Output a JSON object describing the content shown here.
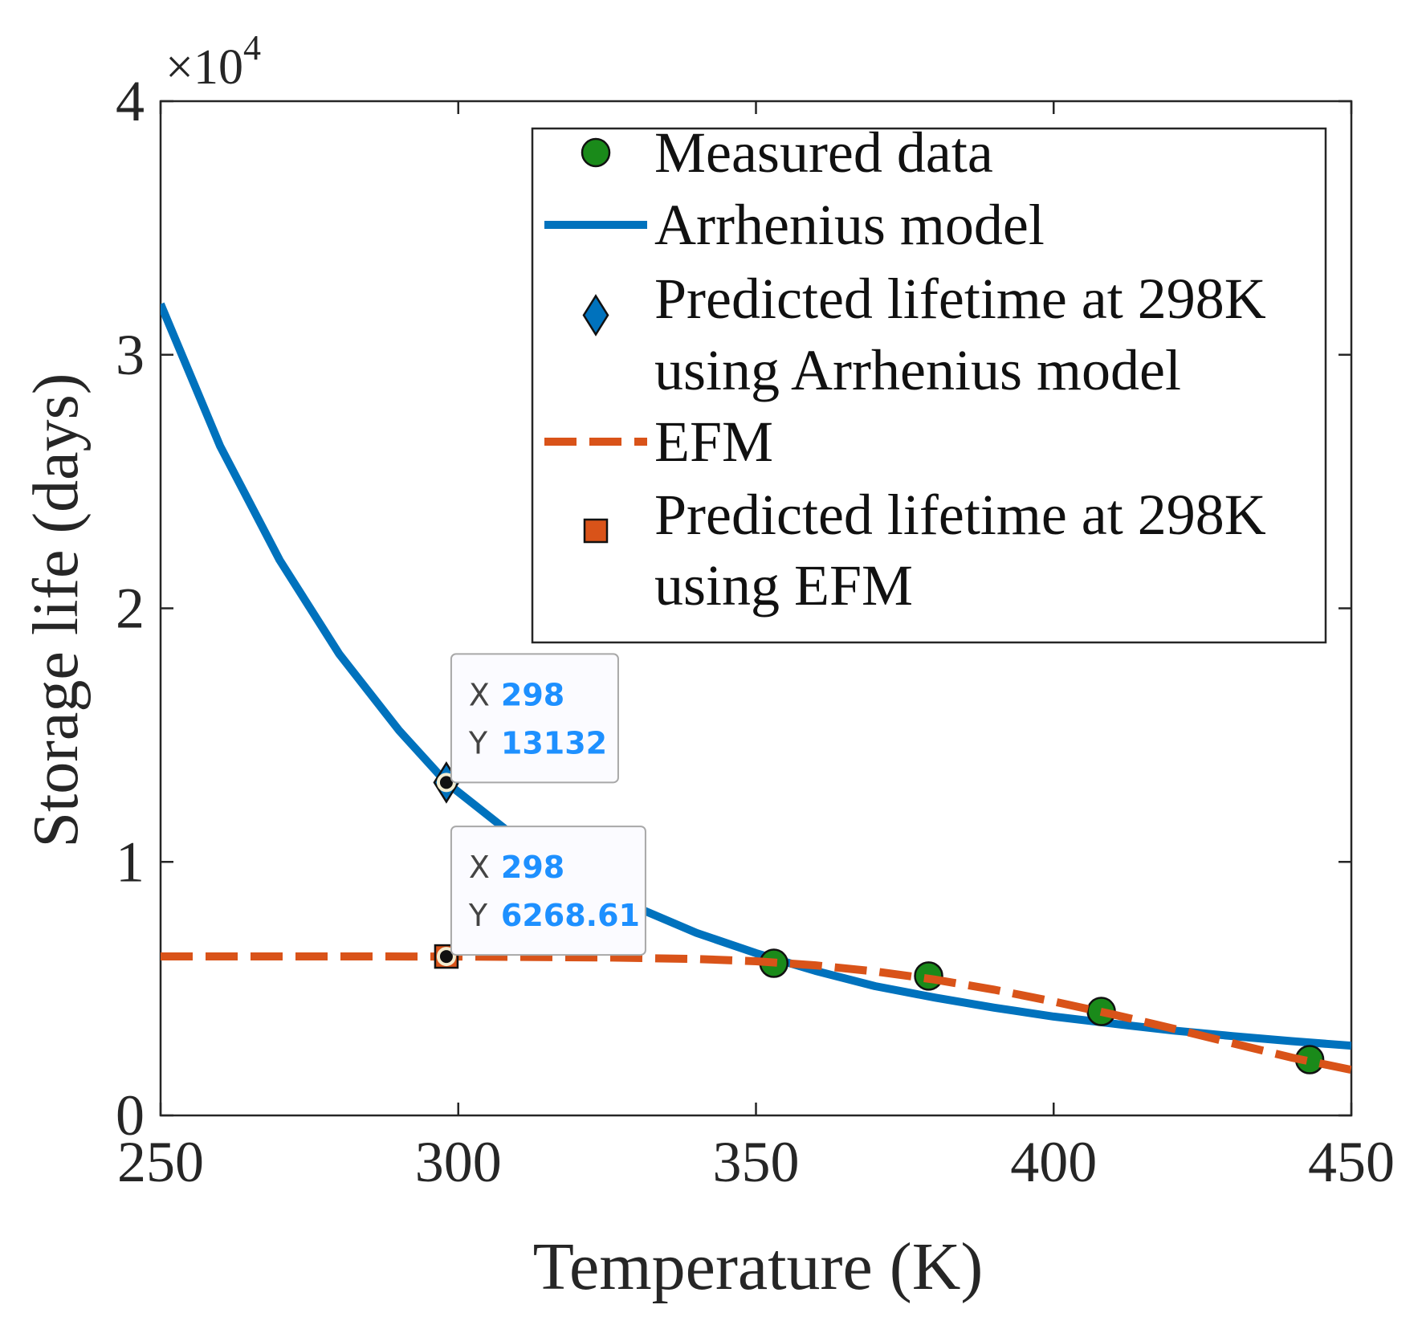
{
  "chart_data": {
    "type": "line",
    "title": "",
    "xlabel": "Temperature (K)",
    "ylabel": "Storage life (days)",
    "xlim": [
      250,
      450
    ],
    "ylim": [
      0,
      40000
    ],
    "x_ticks": [
      250,
      300,
      350,
      400,
      450
    ],
    "x_tick_labels": [
      "250",
      "300",
      "350",
      "400",
      "450"
    ],
    "y_ticks": [
      0,
      10000,
      20000,
      30000,
      40000
    ],
    "y_tick_labels": [
      "0",
      "1",
      "2",
      "3",
      "4"
    ],
    "y_exponent_label": "×10",
    "y_exponent_power": "4",
    "grid": false,
    "legend_position": "top-right",
    "series": [
      {
        "name": "Measured data",
        "kind": "markers",
        "marker": "circle",
        "color": "#1a8a1a",
        "x": [
          353,
          379,
          408,
          443
        ],
        "y": [
          6000,
          5500,
          4100,
          2200
        ]
      },
      {
        "name": "Arrhenius model",
        "kind": "line",
        "style": "solid",
        "color": "#0072BD",
        "x": [
          250,
          260,
          270,
          280,
          290,
          298,
          310,
          320,
          330,
          340,
          350,
          360,
          370,
          380,
          390,
          400,
          410,
          420,
          430,
          440,
          450
        ],
        "y": [
          32000,
          26400,
          21900,
          18200,
          15200,
          13132,
          10900,
          9400,
          8200,
          7200,
          6400,
          5700,
          5100,
          4650,
          4250,
          3900,
          3620,
          3350,
          3130,
          2930,
          2750
        ]
      },
      {
        "name": "Predicted lifetime at 298K using Arrhenius model",
        "legend_lines": [
          "Predicted lifetime at 298K",
          "using Arrhenius model"
        ],
        "kind": "markers",
        "marker": "diamond",
        "color": "#0072BD",
        "x": [
          298
        ],
        "y": [
          13132
        ]
      },
      {
        "name": "EFM",
        "kind": "line",
        "style": "dashed",
        "color": "#D95319",
        "x": [
          250,
          275,
          300,
          325,
          340,
          350,
          360,
          370,
          380,
          390,
          400,
          410,
          420,
          430,
          440,
          450
        ],
        "y": [
          6270,
          6270,
          6268,
          6230,
          6170,
          6080,
          5920,
          5680,
          5360,
          4960,
          4490,
          3980,
          3430,
          2850,
          2280,
          1800
        ]
      },
      {
        "name": "Predicted lifetime at 298K using EFM",
        "legend_lines": [
          "Predicted lifetime at 298K",
          "using EFM"
        ],
        "kind": "markers",
        "marker": "square",
        "color": "#D95319",
        "x": [
          298
        ],
        "y": [
          6268.61
        ]
      }
    ],
    "datatips": [
      {
        "x": 298,
        "y": 13132,
        "x_label": "X",
        "y_label": "Y",
        "x_text": "298",
        "y_text": "13132"
      },
      {
        "x": 298,
        "y": 6268.61,
        "x_label": "X",
        "y_label": "Y",
        "x_text": "298",
        "y_text": "6268.61"
      }
    ]
  }
}
